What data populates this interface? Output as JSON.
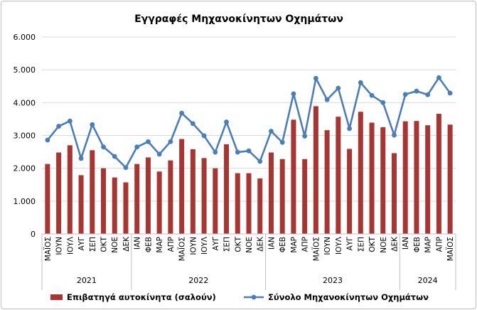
{
  "chart_data": {
    "type": "bar",
    "title": "Εγγραφές Μηχανοκίνητων Οχημάτων",
    "ylim": [
      0,
      6000
    ],
    "yticks": [
      "0",
      "1.000",
      "2.000",
      "3.000",
      "4.000",
      "5.000",
      "6.000"
    ],
    "ytick_values": [
      0,
      1000,
      2000,
      3000,
      4000,
      5000,
      6000
    ],
    "grid": "horizontal",
    "legend_position": "bottom",
    "categories": [
      "ΜΑΪΟΣ",
      "ΙΟΥΝ",
      "ΙΟΥΛ",
      "ΑΥΓ",
      "ΣΕΠ",
      "ΟΚΤ",
      "ΝΟΕ",
      "ΔΕΚ",
      "ΙΑΝ",
      "ΦΕΒ",
      "ΜΑΡ",
      "ΑΠΡ",
      "ΜΑΪΟΣ",
      "ΙΟΥΝ",
      "ΙΟΥΛ",
      "ΑΥΓ",
      "ΣΕΠ",
      "ΟΚΤ",
      "ΝΟΕ",
      "ΔΕΚ",
      "ΙΑΝ",
      "ΦΕΒ",
      "ΜΑΡ",
      "ΑΠΡ",
      "ΜΑΪΟΣ",
      "ΙΟΥΝ",
      "ΙΟΥΛ",
      "ΑΥΓ",
      "ΣΕΠ",
      "ΟΚΤ",
      "ΝΟΕ",
      "ΔΕΚ",
      "ΙΑΝ",
      "ΦΕΒ",
      "ΜΑΡ",
      "ΑΠΡ",
      "ΜΑΪΟΣ"
    ],
    "years": [
      {
        "label": "2021",
        "count": 8
      },
      {
        "label": "2022",
        "count": 12
      },
      {
        "label": "2023",
        "count": 12
      },
      {
        "label": "2024",
        "count": 5
      }
    ],
    "series": [
      {
        "name": "Επιβατηγά αυτοκίνητα (σαλούν)",
        "type": "bar",
        "color": "#a93533",
        "values": [
          2130,
          2480,
          2700,
          1790,
          2550,
          2000,
          1720,
          1570,
          2130,
          2330,
          1900,
          2240,
          2890,
          2580,
          2310,
          2000,
          2730,
          1850,
          1850,
          1690,
          2480,
          2280,
          3480,
          2280,
          3890,
          3160,
          3570,
          2590,
          3720,
          3390,
          3250,
          2460,
          3430,
          3440,
          3310,
          3660,
          3330
        ]
      },
      {
        "name": "Σύνολο Μηχανοκίνητων Οχημάτων",
        "type": "line",
        "color": "#4a7ebb",
        "values": [
          2860,
          3280,
          3440,
          2300,
          3330,
          2650,
          2360,
          2020,
          2650,
          2810,
          2430,
          2810,
          3680,
          3360,
          2990,
          2490,
          3410,
          2490,
          2530,
          2210,
          3130,
          2790,
          4270,
          2980,
          4740,
          4090,
          4440,
          3210,
          4610,
          4220,
          4000,
          3010,
          4250,
          4350,
          4240,
          4760,
          4290
        ]
      }
    ]
  }
}
